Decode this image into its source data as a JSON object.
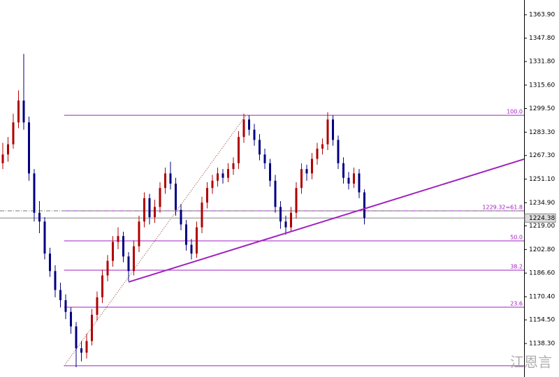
{
  "chart_data": {
    "type": "candlestick",
    "candles": [
      [
        1262,
        1276,
        1258,
        1268
      ],
      [
        1268,
        1280,
        1263,
        1275
      ],
      [
        1275,
        1296,
        1272,
        1290
      ],
      [
        1290,
        1312,
        1286,
        1305
      ],
      [
        1305,
        1337,
        1285,
        1290
      ],
      [
        1290,
        1294,
        1250,
        1255
      ],
      [
        1255,
        1258,
        1222,
        1228
      ],
      [
        1228,
        1236,
        1214,
        1222
      ],
      [
        1222,
        1225,
        1196,
        1200
      ],
      [
        1200,
        1204,
        1184,
        1188
      ],
      [
        1188,
        1192,
        1170,
        1175
      ],
      [
        1175,
        1180,
        1163,
        1168
      ],
      [
        1168,
        1172,
        1155,
        1160
      ],
      [
        1160,
        1163,
        1145,
        1150
      ],
      [
        1150,
        1153,
        1122,
        1135
      ],
      [
        1135,
        1140,
        1126,
        1132
      ],
      [
        1132,
        1145,
        1128,
        1140
      ],
      [
        1140,
        1162,
        1137,
        1158
      ],
      [
        1158,
        1174,
        1154,
        1170
      ],
      [
        1170,
        1189,
        1166,
        1185
      ],
      [
        1185,
        1199,
        1181,
        1195
      ],
      [
        1195,
        1212,
        1191,
        1208
      ],
      [
        1208,
        1218,
        1203,
        1212
      ],
      [
        1212,
        1215,
        1194,
        1198
      ],
      [
        1198,
        1201,
        1181,
        1188
      ],
      [
        1188,
        1209,
        1185,
        1205
      ],
      [
        1205,
        1226,
        1201,
        1222
      ],
      [
        1222,
        1242,
        1218,
        1238
      ],
      [
        1238,
        1241,
        1220,
        1225
      ],
      [
        1225,
        1237,
        1221,
        1232
      ],
      [
        1232,
        1249,
        1228,
        1245
      ],
      [
        1245,
        1259,
        1241,
        1255
      ],
      [
        1255,
        1263,
        1244,
        1248
      ],
      [
        1248,
        1252,
        1226,
        1230
      ],
      [
        1230,
        1234,
        1216,
        1220
      ],
      [
        1220,
        1223,
        1202,
        1206
      ],
      [
        1206,
        1210,
        1196,
        1200
      ],
      [
        1200,
        1222,
        1197,
        1218
      ],
      [
        1218,
        1239,
        1214,
        1235
      ],
      [
        1235,
        1249,
        1231,
        1245
      ],
      [
        1245,
        1254,
        1241,
        1250
      ],
      [
        1250,
        1259,
        1246,
        1255
      ],
      [
        1255,
        1258,
        1248,
        1252
      ],
      [
        1252,
        1262,
        1249,
        1258
      ],
      [
        1258,
        1266,
        1254,
        1262
      ],
      [
        1262,
        1284,
        1258,
        1280
      ],
      [
        1280,
        1296,
        1276,
        1292
      ],
      [
        1292,
        1295,
        1281,
        1285
      ],
      [
        1285,
        1289,
        1274,
        1278
      ],
      [
        1278,
        1282,
        1264,
        1268
      ],
      [
        1268,
        1272,
        1258,
        1262
      ],
      [
        1262,
        1265,
        1246,
        1250
      ],
      [
        1250,
        1254,
        1228,
        1232
      ],
      [
        1232,
        1236,
        1217,
        1222
      ],
      [
        1222,
        1226,
        1213,
        1218
      ],
      [
        1218,
        1232,
        1215,
        1228
      ],
      [
        1228,
        1249,
        1224,
        1245
      ],
      [
        1245,
        1262,
        1241,
        1258
      ],
      [
        1258,
        1261,
        1250,
        1255
      ],
      [
        1255,
        1269,
        1251,
        1265
      ],
      [
        1265,
        1276,
        1261,
        1272
      ],
      [
        1272,
        1279,
        1268,
        1275
      ],
      [
        1275,
        1297,
        1271,
        1292
      ],
      [
        1292,
        1295,
        1274,
        1278
      ],
      [
        1278,
        1281,
        1258,
        1262
      ],
      [
        1262,
        1266,
        1248,
        1252
      ],
      [
        1252,
        1256,
        1244,
        1248
      ],
      [
        1248,
        1259,
        1245,
        1255
      ],
      [
        1255,
        1258,
        1238,
        1242
      ],
      [
        1242,
        1244,
        1220,
        1224.38
      ]
    ],
    "up_color": "#b00000",
    "down_color": "#000080",
    "xlim": [
      -0.53,
      99.47
    ],
    "ylim": [
      1115.3,
      1374
    ],
    "yticks": [
      {
        "value": 1363.9,
        "label": "1363.90"
      },
      {
        "value": 1347.8,
        "label": "1347.80"
      },
      {
        "value": 1331.8,
        "label": "1331.80"
      },
      {
        "value": 1315.6,
        "label": "1315.60"
      },
      {
        "value": 1299.5,
        "label": "1299.50"
      },
      {
        "value": 1283.3,
        "label": "1283.30"
      },
      {
        "value": 1267.3,
        "label": "1267.30"
      },
      {
        "value": 1251.1,
        "label": "1251.10"
      },
      {
        "value": 1234.9,
        "label": "1234.90"
      },
      {
        "value": 1219,
        "label": "1219.00"
      },
      {
        "value": 1202.8,
        "label": "1202.80"
      },
      {
        "value": 1186.6,
        "label": "1186.60"
      },
      {
        "value": 1170.4,
        "label": "1170.40"
      },
      {
        "value": 1154.5,
        "label": "1154.50"
      },
      {
        "value": 1138.3,
        "label": "1138.30"
      }
    ],
    "current_price": 1224.38,
    "fib_anchor": {
      "x": [
        11.7,
        46.4
      ],
      "y": [
        1123,
        1294.9
      ]
    },
    "fib_levels": [
      {
        "label": "100.0",
        "price": 1294.9
      },
      {
        "label": "1229.32=61.8",
        "price": 1229.32
      },
      {
        "label": "50.0",
        "price": 1208.7
      },
      {
        "label": "38.2",
        "price": 1188.6
      },
      {
        "label": "23.6",
        "price": 1163.2
      },
      {
        "price": 1123
      }
    ],
    "fib_color": "#a020c0",
    "trendline": {
      "x": [
        24,
        99.47
      ],
      "y": [
        1180.5,
        1264.8
      ]
    },
    "watermark": "江恩言"
  }
}
